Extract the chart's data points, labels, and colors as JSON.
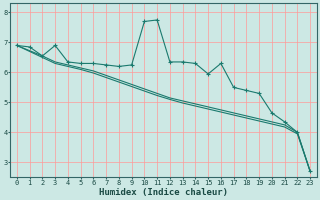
{
  "title": "",
  "xlabel": "Humidex (Indice chaleur)",
  "background_color": "#cce8e4",
  "plot_bg_color": "#cce8e4",
  "grid_color_h": "#ff9999",
  "grid_color_v": "#ff9999",
  "line_color": "#1a7a6e",
  "xlim": [
    -0.5,
    23.5
  ],
  "ylim": [
    2.5,
    8.3
  ],
  "yticks": [
    3,
    4,
    5,
    6,
    7,
    8
  ],
  "xticks": [
    0,
    1,
    2,
    3,
    4,
    5,
    6,
    7,
    8,
    9,
    10,
    11,
    12,
    13,
    14,
    15,
    16,
    17,
    18,
    19,
    20,
    21,
    22,
    23
  ],
  "line1_x": [
    0,
    1,
    2,
    3,
    4,
    5,
    6,
    7,
    8,
    9,
    10,
    11,
    12,
    13,
    14,
    15,
    16,
    17,
    18,
    19,
    20,
    21,
    22,
    23
  ],
  "line1_y": [
    6.9,
    6.85,
    6.55,
    6.9,
    6.35,
    6.3,
    6.3,
    6.25,
    6.2,
    6.25,
    7.7,
    7.75,
    6.35,
    6.35,
    6.3,
    5.95,
    6.3,
    5.5,
    5.4,
    5.3,
    4.65,
    4.35,
    4.0,
    2.7
  ],
  "line2_x": [
    0,
    2,
    3,
    4,
    5,
    6,
    7,
    8,
    9,
    10,
    11,
    12,
    13,
    14,
    15,
    16,
    17,
    18,
    19,
    20,
    21,
    22,
    23
  ],
  "line2_y": [
    6.9,
    6.55,
    6.35,
    6.25,
    6.15,
    6.05,
    5.9,
    5.75,
    5.6,
    5.45,
    5.3,
    5.15,
    5.05,
    4.95,
    4.85,
    4.75,
    4.65,
    4.55,
    4.45,
    4.35,
    4.25,
    4.0,
    2.7
  ],
  "line3_x": [
    0,
    2,
    3,
    4,
    5,
    6,
    7,
    8,
    9,
    10,
    11,
    12,
    13,
    14,
    15,
    16,
    17,
    18,
    19,
    20,
    21,
    22,
    23
  ],
  "line3_y": [
    6.9,
    6.5,
    6.3,
    6.2,
    6.1,
    5.98,
    5.83,
    5.68,
    5.53,
    5.38,
    5.23,
    5.1,
    4.98,
    4.88,
    4.78,
    4.68,
    4.58,
    4.48,
    4.38,
    4.28,
    4.18,
    3.95,
    2.7
  ]
}
